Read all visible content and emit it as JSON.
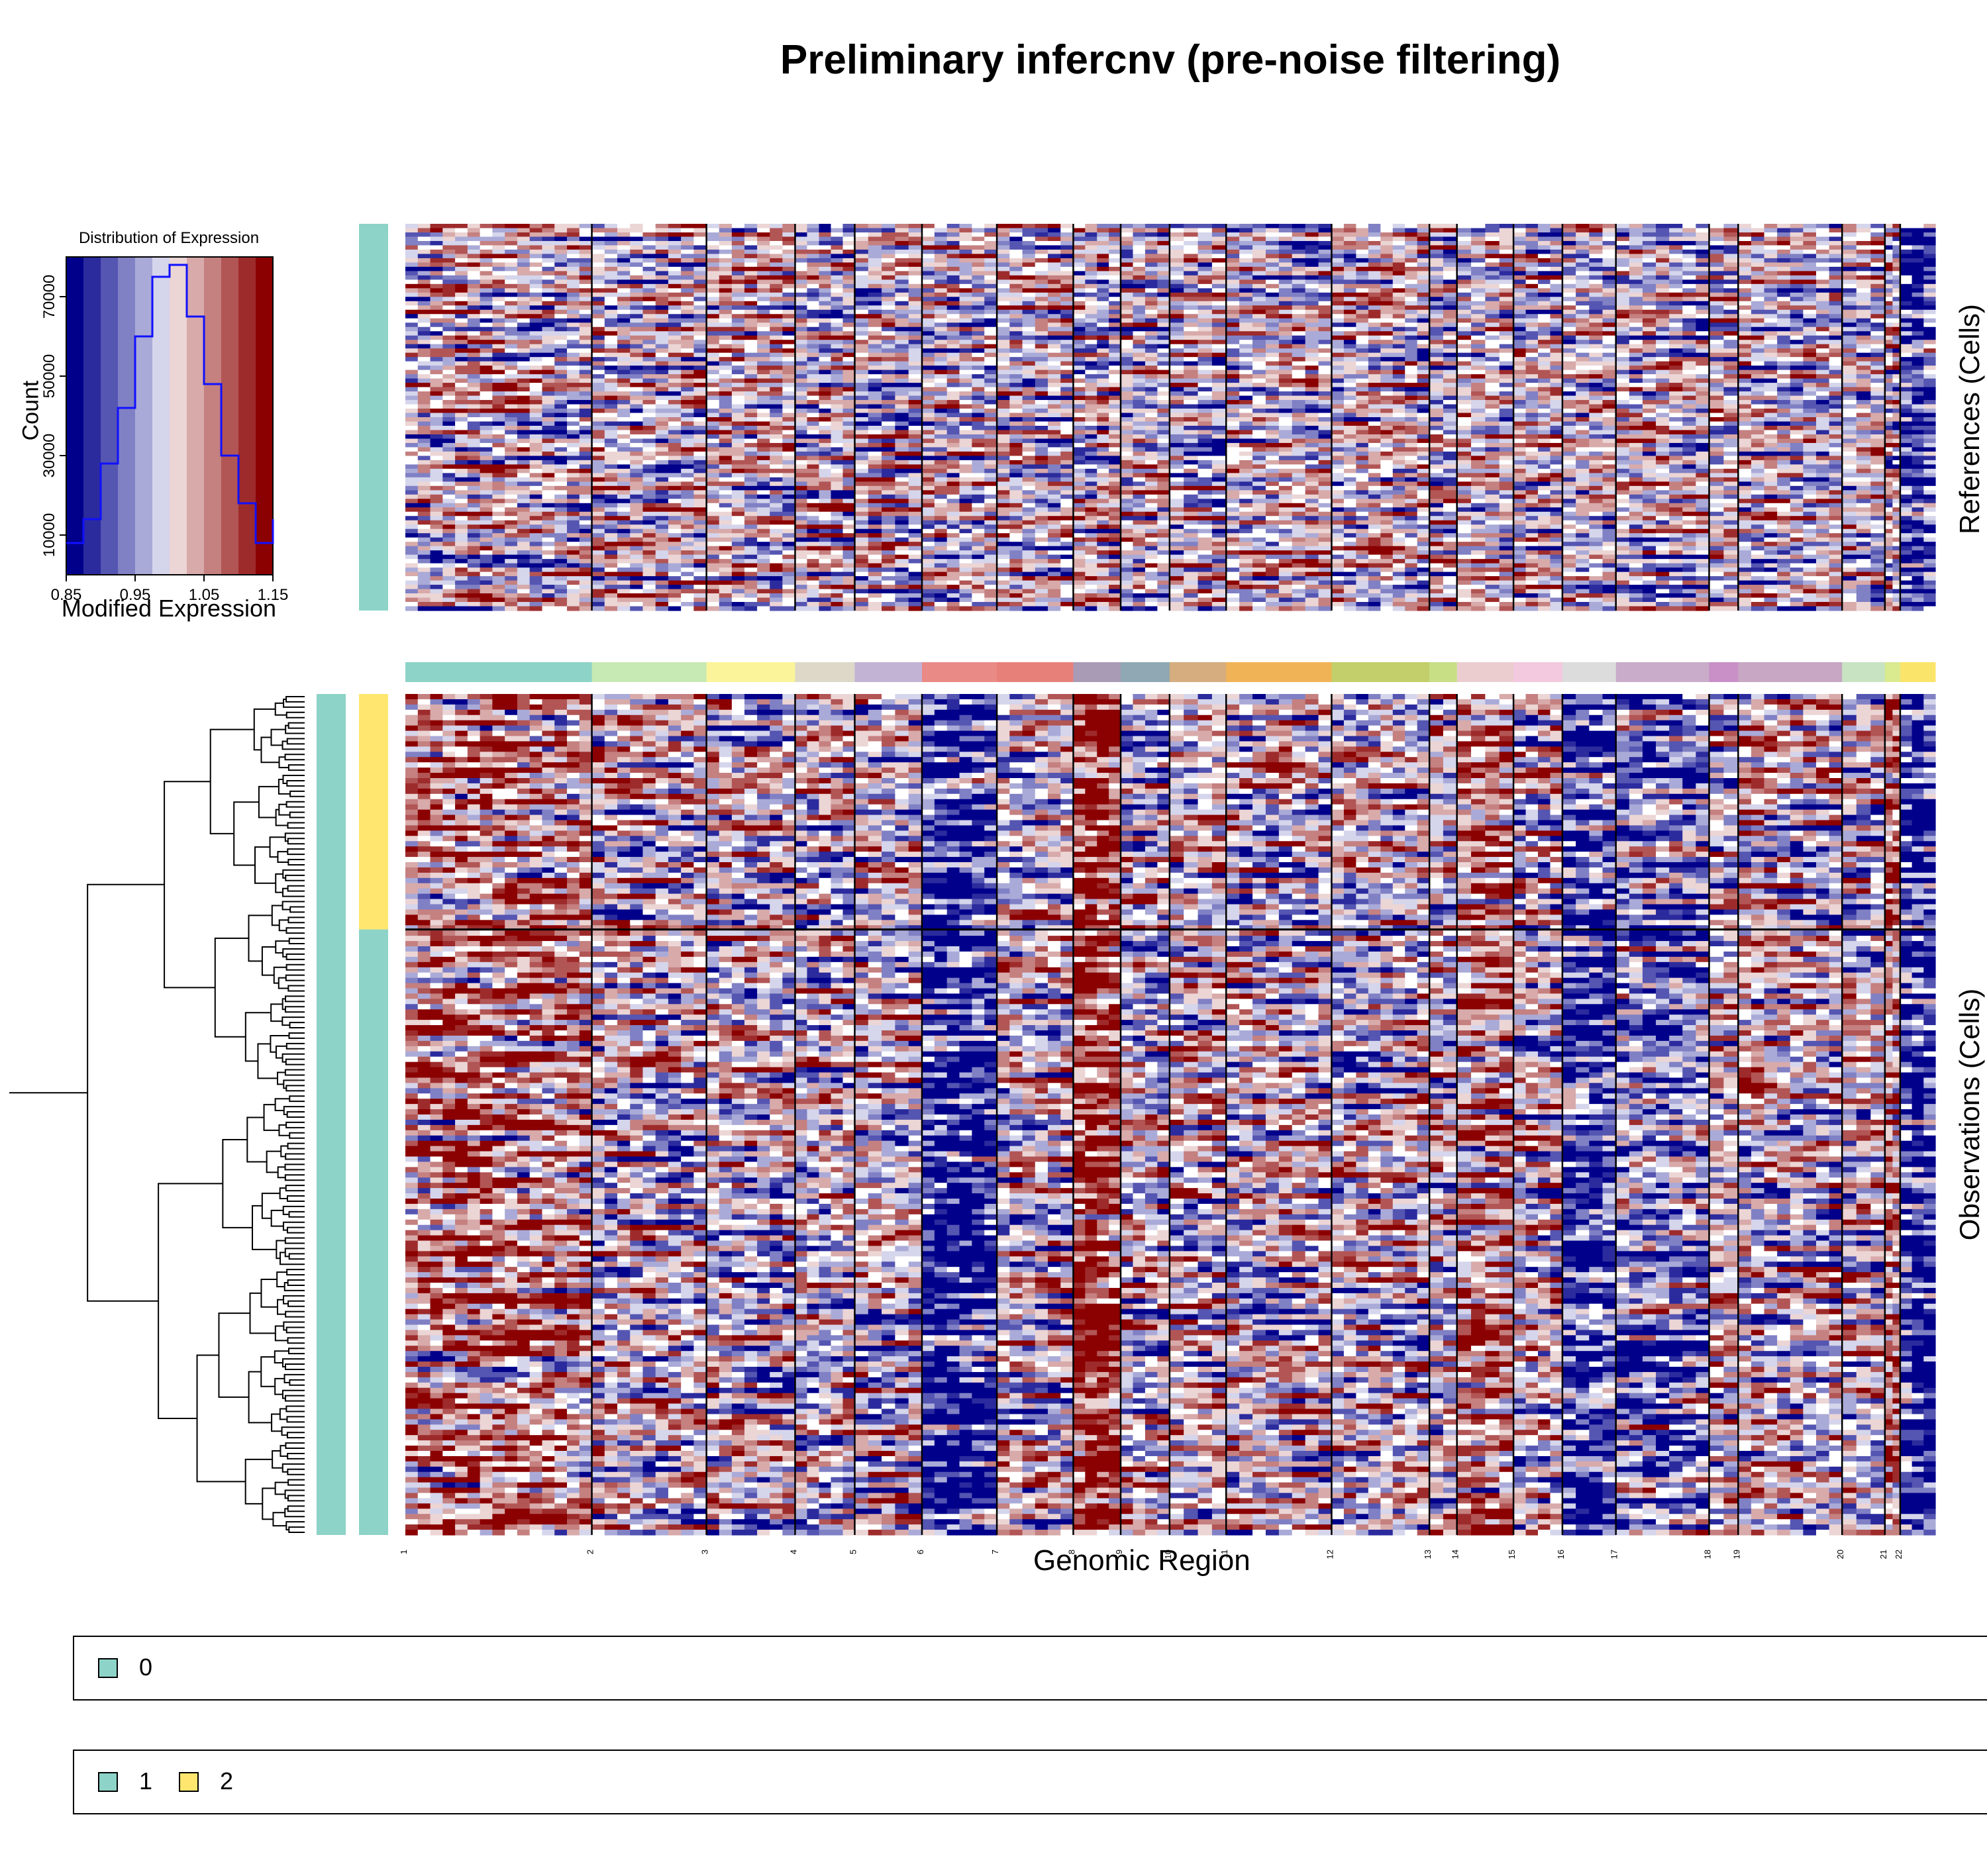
{
  "title": "Preliminary infercnv (pre-noise filtering)",
  "histogram": {
    "title": "Distribution of Expression",
    "xlabel": "Modified Expression",
    "ylabel": "Count",
    "x_ticks": [
      "0.85",
      "0.95",
      "1.05",
      "1.15"
    ],
    "y_ticks": [
      "10000",
      "30000",
      "50000",
      "70000"
    ]
  },
  "chart_data": {
    "type": "heatmap",
    "title": "Preliminary infercnv (pre-noise filtering)",
    "xlabel": "Genomic Region",
    "references_label": "References (Cells)",
    "observations_label": "Observations (Cells)",
    "color_scale": {
      "min": 0.85,
      "mid": 1.0,
      "max": 1.15,
      "low_color": "#00008b",
      "mid_color": "#ffffff",
      "high_color": "#8b0000"
    },
    "histogram": {
      "x_range": [
        0.85,
        1.15
      ],
      "y_range": [
        0,
        80000
      ],
      "bins": [
        0.85,
        0.875,
        0.9,
        0.925,
        0.95,
        0.975,
        1.0,
        1.025,
        1.05,
        1.075,
        1.1,
        1.125,
        1.15
      ],
      "counts": [
        8000,
        14000,
        28000,
        42000,
        60000,
        75000,
        78000,
        65000,
        48000,
        30000,
        18000,
        8000,
        14000
      ]
    },
    "chromosomes": [
      "1",
      "2",
      "3",
      "4",
      "5",
      "6",
      "7",
      "8",
      "9",
      "10",
      "11",
      "12",
      "13",
      "14",
      "15",
      "16",
      "17",
      "18",
      "19",
      "20",
      "21",
      "22"
    ],
    "chromosome_gene_share": [
      12.2,
      7.5,
      5.8,
      3.9,
      4.4,
      4.9,
      5.0,
      3.1,
      3.2,
      3.7,
      6.9,
      6.4,
      1.8,
      3.7,
      3.2,
      3.5,
      6.1,
      1.9,
      6.8,
      2.8,
      1.0,
      2.3
    ],
    "chromosome_colors": [
      "#8dd3c7",
      "#c7e9b4",
      "#fbf49a",
      "#ddd8c8",
      "#c2b3d5",
      "#e98a86",
      "#e8807a",
      "#a99ab5",
      "#8fa8b3",
      "#d5ad7e",
      "#f0b356",
      "#c3cf6a",
      "#c8df86",
      "#ebcdcf",
      "#f2c9df",
      "#dcdcdc",
      "#c9acc9",
      "#c890c6",
      "#c7a7c3",
      "#c8e3c2",
      "#d9ea8f",
      "#fbe46a"
    ],
    "observation_groups": [
      {
        "name": "2",
        "color": "#ffe66e",
        "cell_share": 0.28
      },
      {
        "name": "1",
        "color": "#8dd3c7",
        "cell_share": 0.72
      }
    ],
    "reference_groups": [
      {
        "name": "0",
        "color": "#8dd3c7"
      }
    ],
    "observation_signals": [
      {
        "chromosome": "6",
        "direction": "loss",
        "strength": 0.95
      },
      {
        "chromosome": "8",
        "direction": "gain",
        "strength": 0.95
      },
      {
        "chromosome": "16",
        "direction": "loss",
        "strength": 0.75
      },
      {
        "chromosome": "22",
        "direction": "loss",
        "strength": 0.8
      },
      {
        "chromosome": "1",
        "direction": "gain",
        "strength": 0.45
      },
      {
        "chromosome": "21",
        "direction": "gain",
        "strength": 0.5
      },
      {
        "chromosome": "14",
        "direction": "gain",
        "strength": 0.45
      },
      {
        "chromosome": "17",
        "direction": "loss",
        "strength": 0.4
      }
    ],
    "reference_signals": [
      {
        "chromosome": "22",
        "direction": "loss",
        "strength": 0.8
      }
    ]
  },
  "legends": [
    {
      "entries": [
        {
          "label": "0",
          "color": "#8dd3c7"
        }
      ]
    },
    {
      "entries": [
        {
          "label": "1",
          "color": "#8dd3c7"
        },
        {
          "label": "2",
          "color": "#ffe66e"
        }
      ]
    }
  ]
}
